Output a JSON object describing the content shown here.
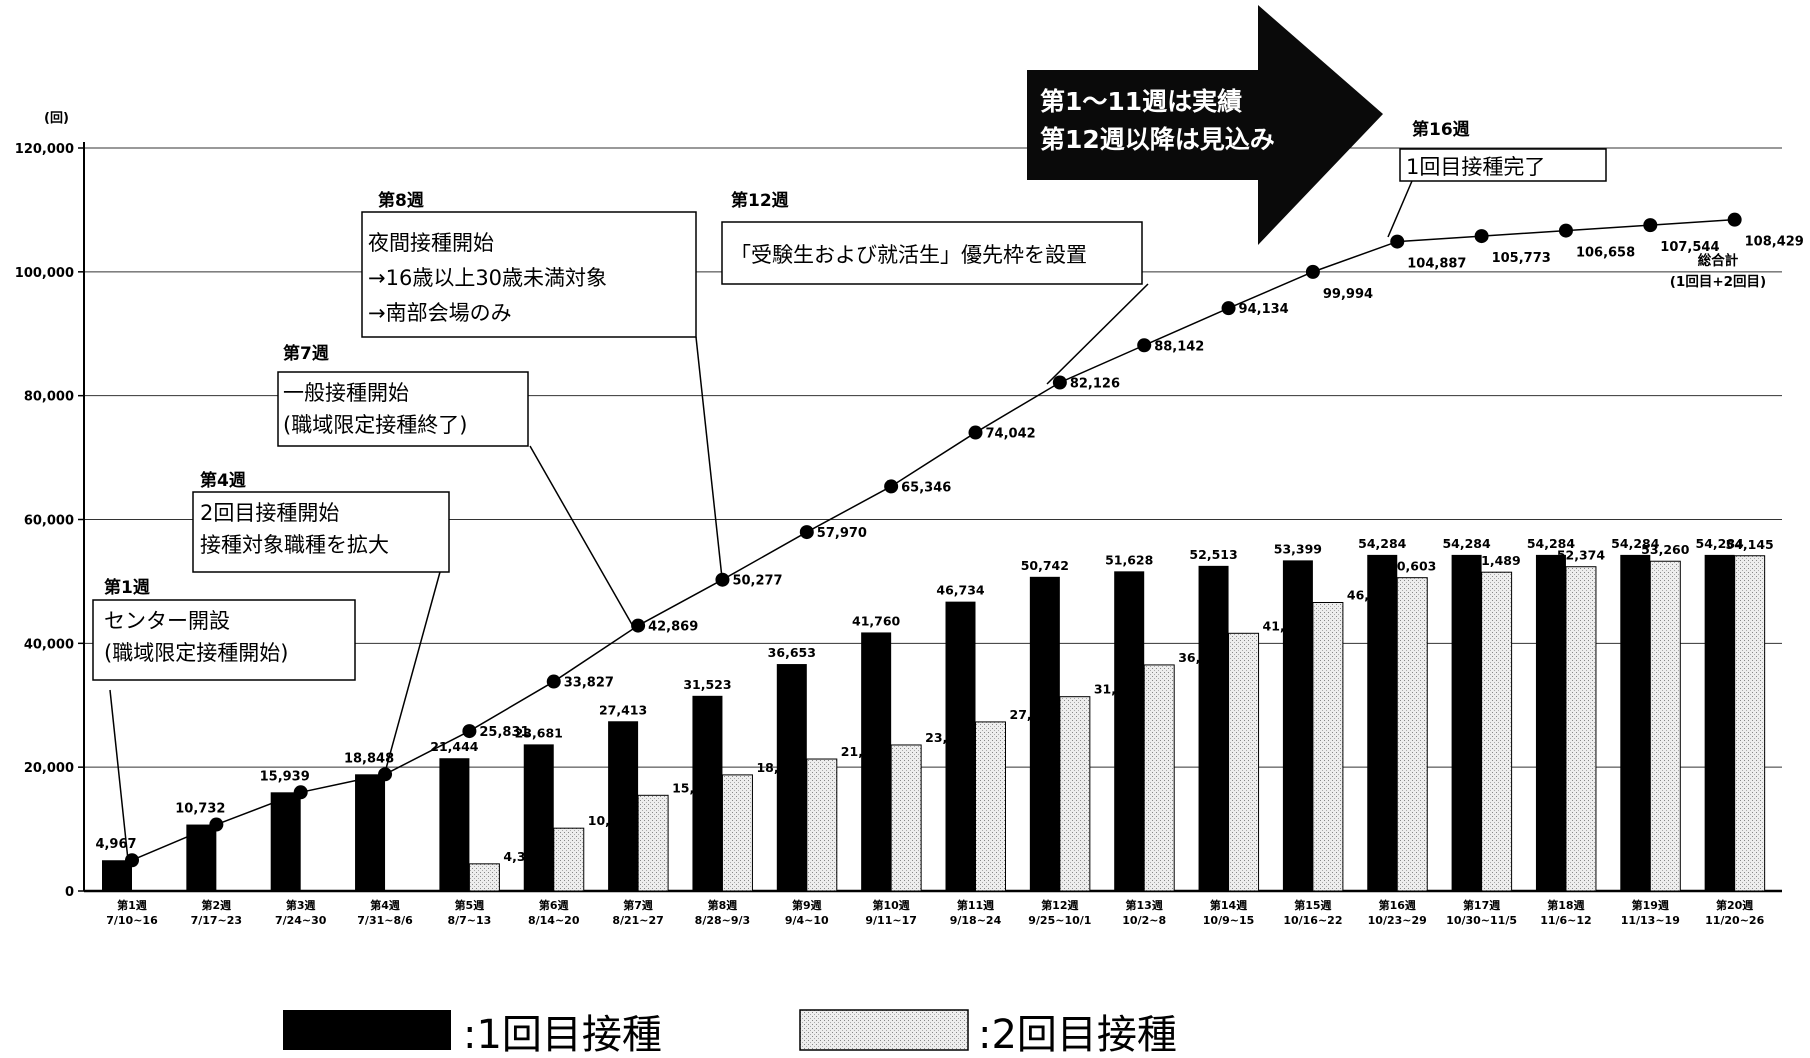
{
  "chart_data": {
    "type": "bar",
    "unit_label": "(回)",
    "ylim": [
      0,
      120000
    ],
    "y_ticks": [
      "0",
      "20,000",
      "40,000",
      "60,000",
      "80,000",
      "100,000",
      "120,000"
    ],
    "grid": true,
    "categories": [
      {
        "week": "第1週",
        "dates": "7/10~16"
      },
      {
        "week": "第2週",
        "dates": "7/17~23"
      },
      {
        "week": "第3週",
        "dates": "7/24~30"
      },
      {
        "week": "第4週",
        "dates": "7/31~8/6"
      },
      {
        "week": "第5週",
        "dates": "8/7~13"
      },
      {
        "week": "第6週",
        "dates": "8/14~20"
      },
      {
        "week": "第7週",
        "dates": "8/21~27"
      },
      {
        "week": "第8週",
        "dates": "8/28~9/3"
      },
      {
        "week": "第9週",
        "dates": "9/4~10"
      },
      {
        "week": "第10週",
        "dates": "9/11~17"
      },
      {
        "week": "第11週",
        "dates": "9/18~24"
      },
      {
        "week": "第12週",
        "dates": "9/25~10/1"
      },
      {
        "week": "第13週",
        "dates": "10/2~8"
      },
      {
        "week": "第14週",
        "dates": "10/9~15"
      },
      {
        "week": "第15週",
        "dates": "10/16~22"
      },
      {
        "week": "第16週",
        "dates": "10/23~29"
      },
      {
        "week": "第17週",
        "dates": "10/30~11/5"
      },
      {
        "week": "第18週",
        "dates": "11/6~12"
      },
      {
        "week": "第19週",
        "dates": "11/13~19"
      },
      {
        "week": "第20週",
        "dates": "11/20~26"
      }
    ],
    "series": [
      {
        "name": ":1回目接種",
        "kind": "bar",
        "color": "#000000",
        "values": [
          4967,
          10732,
          15939,
          18848,
          21444,
          23681,
          27413,
          31523,
          36653,
          41760,
          46734,
          50742,
          51628,
          52513,
          53399,
          54284,
          54284,
          54284,
          54284,
          54284
        ],
        "labels": [
          "4,967",
          "10,732",
          "15,939",
          "18,848",
          "21,444",
          "23,681",
          "27,413",
          "31,523",
          "36,653",
          "41,760",
          "46,734",
          "50,742",
          "51,628",
          "52,513",
          "53,399",
          "54,284",
          "54,284",
          "54,284",
          "54,284",
          "54,284"
        ]
      },
      {
        "name": ":2回目接種",
        "kind": "bar",
        "color": "#e6e6e6",
        "values": [
          0,
          0,
          0,
          0,
          4387,
          10146,
          15456,
          18754,
          21317,
          23586,
          27308,
          31384,
          36514,
          41621,
          46595,
          50603,
          51489,
          52374,
          53260,
          54145
        ],
        "labels": [
          "",
          "",
          "",
          "",
          "4,387",
          "10,146",
          "15,456",
          "18,754",
          "21,317",
          "23,586",
          "27,308",
          "31,384",
          "36,514",
          "41,621",
          "46,595",
          "50,603",
          "51,489",
          "52,374",
          "53,260",
          "54,145"
        ]
      },
      {
        "name": "総合計",
        "subname": "(1回目+2回目)",
        "kind": "line",
        "color": "#000000",
        "values": [
          4967,
          10732,
          15939,
          18848,
          25831,
          33827,
          42869,
          50277,
          57970,
          65346,
          74042,
          82126,
          88142,
          94134,
          99994,
          104887,
          105773,
          106658,
          107544,
          108429
        ],
        "labels": [
          "4,967",
          "10,732",
          "15,939",
          "18,848",
          "25,831",
          "33,827",
          "42,869",
          "50,277",
          "57,970",
          "65,346",
          "74,042",
          "82,126",
          "88,142",
          "94,134",
          "99,994",
          "104,887",
          "105,773",
          "106,658",
          "107,544",
          "108,429"
        ]
      }
    ],
    "annotations": [
      {
        "title": "第1週",
        "lines": [
          "センター開設",
          "(職域限定接種開始)"
        ],
        "target": 0
      },
      {
        "title": "第4週",
        "lines": [
          "2回目接種開始",
          "接種対象職種を拡大"
        ],
        "target": 3
      },
      {
        "title": "第7週",
        "lines": [
          "一般接種開始",
          "(職域限定接種終了)"
        ],
        "target": 6
      },
      {
        "title": "第8週",
        "lines": [
          "夜間接種開始",
          "→16歳以上30歳未満対象",
          "→南部会場のみ"
        ],
        "target": 7
      },
      {
        "title": "第12週",
        "lines": [
          "「受験生および就活生」優先枠を設置"
        ],
        "target": 11
      },
      {
        "title": "第16週",
        "lines": [
          "1回目接種完了"
        ],
        "target": 15
      }
    ],
    "arrow_text": [
      "第1～11週は実績",
      "第12週以降は見込み"
    ],
    "legend": [
      {
        "label": ":1回目接種",
        "color": "#000000"
      },
      {
        "label": ":2回目接種",
        "color": "#e6e6e6"
      }
    ]
  }
}
